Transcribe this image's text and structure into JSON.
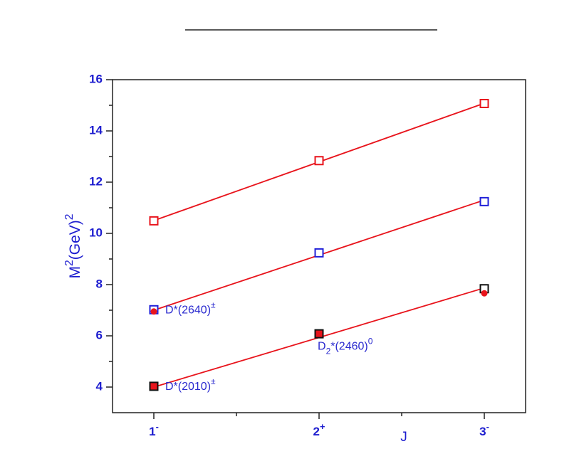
{
  "chart_data": {
    "type": "line",
    "x_label": "J",
    "y_label_parts": [
      {
        "text": "M"
      },
      {
        "text": "2",
        "sup": true
      },
      {
        "text": "(GeV)"
      },
      {
        "text": "2",
        "sup": true
      }
    ],
    "xlim": [
      0.75,
      3.25
    ],
    "ylim": [
      3,
      16
    ],
    "xticks": [
      {
        "value": 1,
        "label": "1",
        "sup": "-"
      },
      {
        "value": 2,
        "label": "2",
        "sup": "+"
      },
      {
        "value": 3,
        "label": "3",
        "sup": "-"
      }
    ],
    "x_minor_ticks": [
      1.5,
      2.5
    ],
    "yticks": [
      4,
      6,
      8,
      10,
      12,
      14,
      16
    ],
    "y_minor_ticks": [
      5,
      7,
      9,
      11,
      13,
      15
    ],
    "axis_color": "#1c1ccf",
    "fits": [
      {
        "color": "#e8141c",
        "x": [
          1,
          3
        ],
        "values": [
          10.5,
          15.08
        ]
      },
      {
        "color": "#e8141c",
        "x": [
          1,
          3
        ],
        "values": [
          7.0,
          11.3
        ]
      },
      {
        "color": "#e8141c",
        "x": [
          1,
          3
        ],
        "values": [
          4.0,
          7.87
        ]
      }
    ],
    "series": [
      {
        "marker": "square",
        "color": "#e8141c",
        "x": [
          1,
          2,
          3
        ],
        "values": [
          10.49,
          12.84,
          15.07
        ]
      },
      {
        "marker": "square",
        "color": "#2020d8",
        "x": [
          1,
          2,
          3
        ],
        "values": [
          7.02,
          9.24,
          11.24
        ]
      },
      {
        "marker": "square",
        "color": "#111111",
        "fill_colors": [
          "#e8141c",
          "#e8141c",
          "none"
        ],
        "x": [
          1,
          2,
          3
        ],
        "values": [
          4.03,
          6.08,
          7.84
        ]
      },
      {
        "marker": "dot",
        "color": "#e8141c",
        "x": [
          1,
          3
        ],
        "values": [
          6.95,
          7.66
        ]
      }
    ],
    "annotations": [
      {
        "x": 1,
        "y": 7.02,
        "parts": [
          {
            "text": "D*(2640)"
          },
          {
            "text": "±",
            "sup": true
          }
        ]
      },
      {
        "x": 2,
        "y": 5.6,
        "parts": [
          {
            "text": "D"
          },
          {
            "text": "2",
            "sub": true
          },
          {
            "text": "*(2460)"
          },
          {
            "text": "0",
            "sup": true
          }
        ]
      },
      {
        "x": 1,
        "y": 4.03,
        "parts": [
          {
            "text": "D*(2010)"
          },
          {
            "text": "±",
            "sup": true
          }
        ]
      }
    ]
  }
}
